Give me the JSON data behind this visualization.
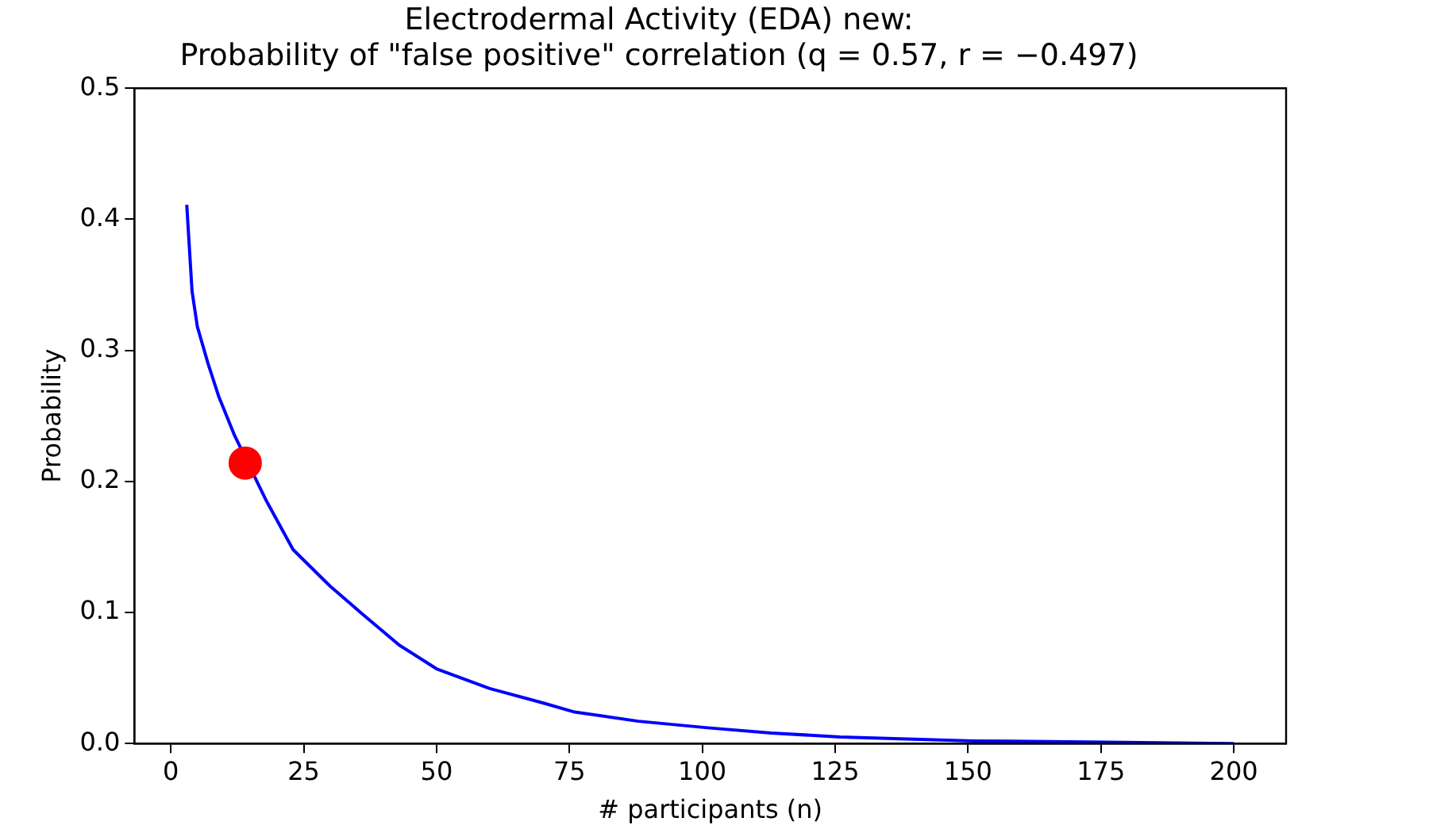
{
  "chart_data": {
    "type": "line",
    "title": "Electrodermal Activity (EDA) new:\nProbability of \"false positive\" correlation (q = 0.57, r = −0.497)",
    "xlabel": "# participants (n)",
    "ylabel": "Probability",
    "xlim": [
      -6.85,
      209.85
    ],
    "xticks": [
      0,
      25,
      50,
      75,
      100,
      125,
      150,
      175,
      200
    ],
    "ylim": [
      0,
      0.5
    ],
    "yticks": [
      {
        "value": 0,
        "label": "0.0"
      },
      {
        "value": 0.1,
        "label": "0.1"
      },
      {
        "value": 0.2,
        "label": "0.2"
      },
      {
        "value": 0.3,
        "label": "0.3"
      },
      {
        "value": 0.4,
        "label": "0.4"
      },
      {
        "value": 0.5,
        "label": "0.5"
      }
    ],
    "grid": false,
    "legend": false,
    "marker": "none",
    "line_style": "solid",
    "series": [
      {
        "color": "#0000ff",
        "x": [
          3,
          4,
          5,
          7,
          9,
          12,
          18,
          23,
          30,
          36,
          43,
          50,
          60,
          70,
          76,
          88,
          101,
          113,
          126,
          151,
          176,
          200
        ],
        "values": [
          0.411,
          0.345,
          0.318,
          0.29,
          0.265,
          0.235,
          0.185,
          0.148,
          0.12,
          0.099,
          0.075,
          0.057,
          0.042,
          0.031,
          0.024,
          0.017,
          0.012,
          0.008,
          0.005,
          0.002,
          0.001,
          0
        ]
      },
      {
        "type": "scatter",
        "color": "#ff0000",
        "marker": "circle",
        "x": [
          14
        ],
        "values": [
          0.214
        ]
      }
    ]
  }
}
